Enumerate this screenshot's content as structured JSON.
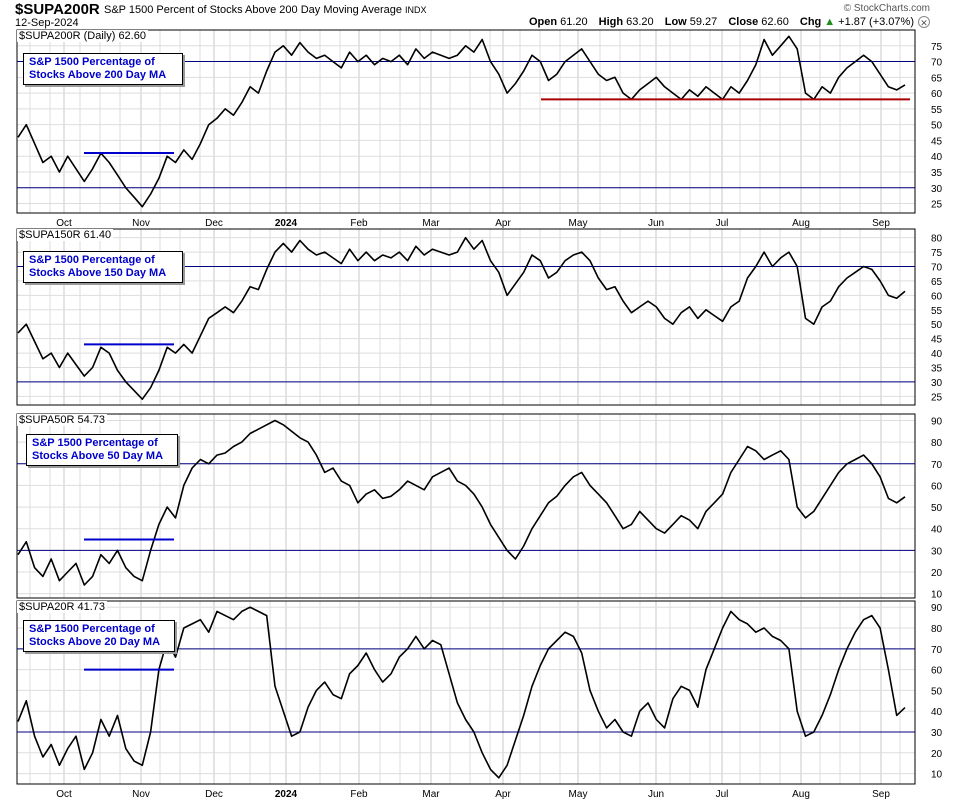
{
  "header": {
    "symbol": "$SUPA200R",
    "description": "S&P 1500 Percent of Stocks Above 200 Day Moving Average",
    "exchange": "INDX",
    "date": "12-Sep-2024",
    "brand": "© StockCharts.com",
    "ohlc": {
      "open_label": "Open",
      "open": "61.20",
      "high_label": "High",
      "high": "63.20",
      "low_label": "Low",
      "low": "59.27",
      "close_label": "Close",
      "close": "62.60",
      "chg_label": "Chg",
      "chg": "+1.87 (+3.07%)",
      "chg_arrow": "▲"
    }
  },
  "colors": {
    "line": "#000000",
    "hline": "#000080",
    "grid": "#dddddd",
    "support": "#aa0000",
    "range": "#0000cc",
    "annotation_text": "#0000cc"
  },
  "x_axis": {
    "months": [
      "Oct",
      "Nov",
      "Dec",
      "2024",
      "Feb",
      "Mar",
      "Apr",
      "May",
      "Jun",
      "Jul",
      "Aug",
      "Sep"
    ]
  },
  "chart_data": [
    {
      "type": "line",
      "id": "p200",
      "legend": "$SUPA200R (Daily) 62.60",
      "annotation": [
        "S&P 1500 Percentage of",
        "Stocks Above 200 Day MA"
      ],
      "ylim": [
        22,
        80
      ],
      "yticks": [
        25,
        30,
        35,
        40,
        45,
        50,
        55,
        60,
        65,
        70,
        75
      ],
      "hlines": [
        70,
        30
      ],
      "range_line": {
        "value": 41,
        "from": "Oct",
        "to": "Nov"
      },
      "support_line": {
        "value": 58,
        "from": "Apr",
        "to": "Sep"
      },
      "values": [
        46,
        50,
        44,
        38,
        40,
        35,
        40,
        36,
        32,
        36,
        41,
        38,
        34,
        30,
        27,
        24,
        28,
        33,
        40,
        38,
        42,
        39,
        44,
        50,
        52,
        55,
        53,
        57,
        62,
        60,
        67,
        73,
        75,
        72,
        76,
        73,
        71,
        72,
        70,
        68,
        73,
        70,
        72,
        69,
        71,
        70,
        72,
        69,
        74,
        71,
        73,
        72,
        71,
        72,
        75,
        73,
        77,
        70,
        66,
        60,
        63,
        67,
        72,
        70,
        64,
        66,
        70,
        72,
        74,
        70,
        66,
        64,
        65,
        60,
        58,
        61,
        63,
        65,
        62,
        60,
        58,
        61,
        59,
        62,
        60,
        58,
        62,
        60,
        64,
        69,
        77,
        72,
        75,
        78,
        74,
        60,
        58,
        62,
        60,
        65,
        68,
        70,
        72,
        70,
        66,
        62,
        61,
        62.6
      ]
    },
    {
      "type": "line",
      "id": "p150",
      "legend": "$SUPA150R 61.40",
      "annotation": [
        "S&P 1500 Percentage of",
        "Stocks Above 150 Day MA"
      ],
      "ylim": [
        22,
        83
      ],
      "yticks": [
        25,
        30,
        35,
        40,
        45,
        50,
        55,
        60,
        65,
        70,
        75,
        80
      ],
      "hlines": [
        70,
        30
      ],
      "range_line": {
        "value": 43,
        "from": "Oct",
        "to": "Nov"
      },
      "values": [
        47,
        50,
        44,
        38,
        40,
        35,
        40,
        36,
        32,
        35,
        42,
        40,
        34,
        30,
        27,
        24,
        28,
        34,
        42,
        40,
        43,
        40,
        46,
        52,
        54,
        56,
        54,
        58,
        63,
        62,
        69,
        75,
        78,
        75,
        79,
        76,
        74,
        75,
        73,
        71,
        76,
        72,
        75,
        72,
        74,
        73,
        75,
        72,
        77,
        74,
        76,
        75,
        74,
        75,
        80,
        76,
        79,
        72,
        68,
        60,
        64,
        68,
        74,
        72,
        66,
        68,
        72,
        74,
        75,
        72,
        66,
        62,
        63,
        58,
        54,
        56,
        58,
        56,
        52,
        50,
        54,
        56,
        52,
        55,
        53,
        51,
        56,
        58,
        66,
        70,
        75,
        70,
        73,
        75,
        70,
        52,
        50,
        56,
        58,
        63,
        66,
        68,
        70,
        69,
        65,
        60,
        59,
        61.4
      ]
    },
    {
      "type": "line",
      "id": "p50",
      "legend": "$SUPA50R 54.73",
      "annotation": [
        "S&P 1500 Percentage of",
        "Stocks Above 50 Day MA"
      ],
      "ylim": [
        8,
        93
      ],
      "yticks": [
        10,
        20,
        30,
        40,
        50,
        60,
        70,
        80,
        90
      ],
      "hlines": [
        70,
        30
      ],
      "range_line": {
        "value": 35,
        "from": "Oct",
        "to": "Nov"
      },
      "values": [
        28,
        34,
        22,
        18,
        26,
        16,
        20,
        24,
        14,
        18,
        28,
        24,
        30,
        22,
        18,
        16,
        30,
        42,
        50,
        45,
        60,
        68,
        72,
        70,
        74,
        75,
        78,
        80,
        84,
        86,
        88,
        90,
        88,
        85,
        82,
        80,
        74,
        66,
        68,
        62,
        60,
        52,
        56,
        58,
        54,
        55,
        58,
        62,
        60,
        58,
        64,
        66,
        68,
        62,
        60,
        56,
        50,
        42,
        36,
        30,
        26,
        32,
        40,
        46,
        52,
        55,
        60,
        64,
        66,
        60,
        56,
        52,
        46,
        40,
        42,
        48,
        44,
        40,
        38,
        42,
        46,
        44,
        40,
        48,
        52,
        56,
        66,
        72,
        78,
        76,
        72,
        74,
        76,
        72,
        50,
        45,
        48,
        54,
        60,
        66,
        70,
        72,
        74,
        70,
        64,
        54,
        52,
        54.73
      ]
    },
    {
      "type": "line",
      "id": "p20",
      "legend": "$SUPA20R 41.73",
      "annotation": [
        "S&P 1500 Percentage of",
        "Stocks Above 20 Day MA"
      ],
      "ylim": [
        5,
        93
      ],
      "yticks": [
        10,
        20,
        30,
        40,
        50,
        60,
        70,
        80,
        90
      ],
      "hlines": [
        70,
        30
      ],
      "range_line": {
        "value": 60,
        "from": "Oct",
        "to": "Nov"
      },
      "values": [
        35,
        45,
        28,
        18,
        24,
        14,
        22,
        28,
        12,
        20,
        36,
        28,
        38,
        22,
        16,
        14,
        30,
        60,
        74,
        66,
        80,
        82,
        84,
        78,
        88,
        86,
        84,
        88,
        90,
        88,
        86,
        52,
        40,
        28,
        30,
        42,
        50,
        54,
        48,
        46,
        58,
        62,
        68,
        60,
        54,
        58,
        66,
        70,
        76,
        70,
        74,
        72,
        58,
        44,
        36,
        30,
        20,
        12,
        8,
        14,
        26,
        38,
        52,
        62,
        70,
        74,
        78,
        76,
        68,
        50,
        40,
        32,
        36,
        30,
        28,
        40,
        44,
        36,
        32,
        46,
        52,
        50,
        42,
        60,
        70,
        80,
        88,
        84,
        82,
        78,
        80,
        76,
        74,
        70,
        40,
        28,
        30,
        38,
        48,
        60,
        70,
        78,
        84,
        86,
        80,
        60,
        38,
        41.73
      ]
    }
  ]
}
